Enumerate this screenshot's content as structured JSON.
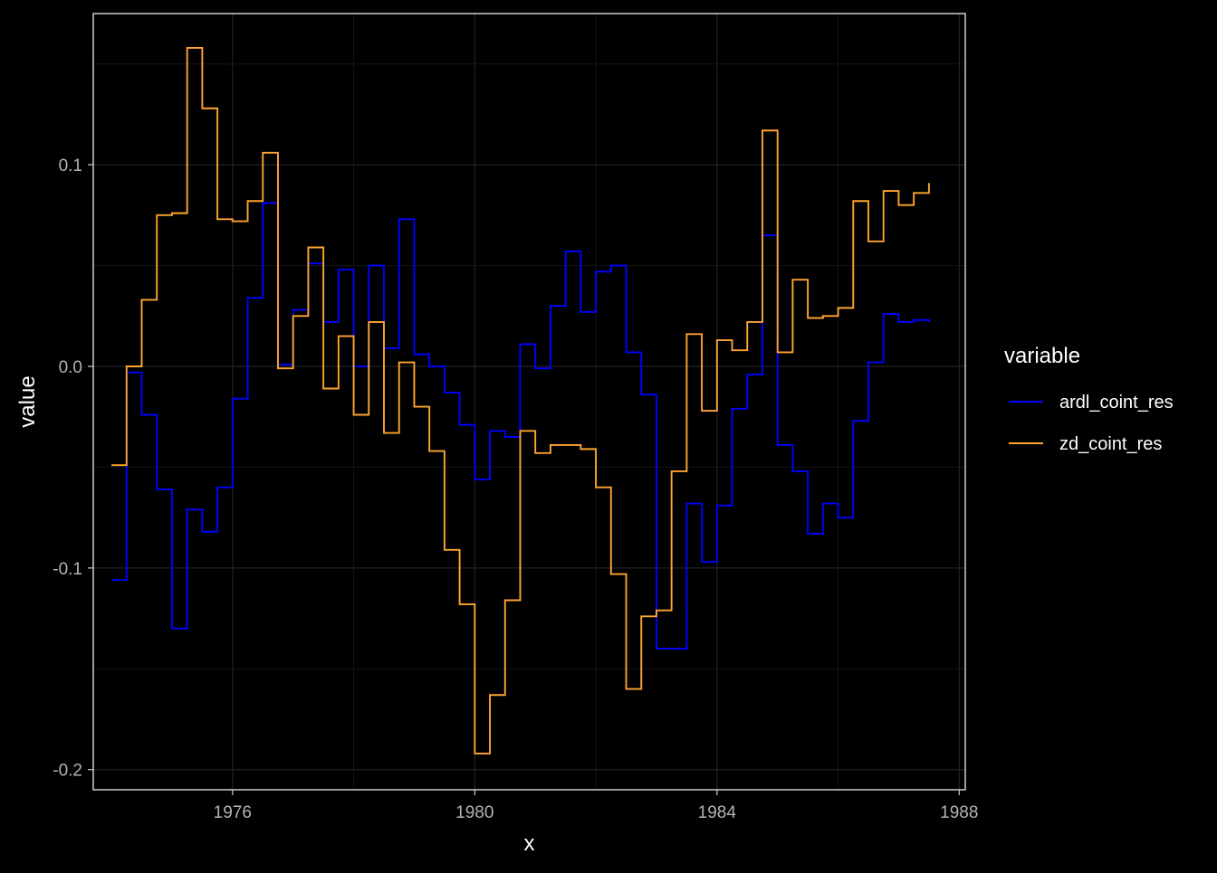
{
  "chart_data": {
    "type": "line",
    "step": true,
    "xlabel": "x",
    "ylabel": "value",
    "xlim": [
      1973.7,
      1988.1
    ],
    "ylim": [
      -0.21,
      0.175
    ],
    "x_ticks": [
      1976,
      1980,
      1984,
      1988
    ],
    "x_minor_ticks": [
      1978,
      1982,
      1986
    ],
    "y_ticks": [
      -0.2,
      -0.1,
      0.0,
      0.1
    ],
    "y_tick_labels": [
      "-0.2",
      "-0.1",
      "0.0",
      "0.1"
    ],
    "y_minor_ticks": [
      -0.15,
      -0.05,
      0.05,
      0.15
    ],
    "grid": true,
    "legend": {
      "title": "variable",
      "position": "right"
    },
    "colors": {
      "background": "#000000",
      "panel_border": "#ffffff",
      "grid_major": "#222222",
      "grid_minor": "#141414"
    },
    "x": [
      1974.0,
      1974.25,
      1974.5,
      1974.75,
      1975.0,
      1975.25,
      1975.5,
      1975.75,
      1976.0,
      1976.25,
      1976.5,
      1976.75,
      1977.0,
      1977.25,
      1977.5,
      1977.75,
      1978.0,
      1978.25,
      1978.5,
      1978.75,
      1979.0,
      1979.25,
      1979.5,
      1979.75,
      1980.0,
      1980.25,
      1980.5,
      1980.75,
      1981.0,
      1981.25,
      1981.5,
      1981.75,
      1982.0,
      1982.25,
      1982.5,
      1982.75,
      1983.0,
      1983.25,
      1983.5,
      1983.75,
      1984.0,
      1984.25,
      1984.5,
      1984.75,
      1985.0,
      1985.25,
      1985.5,
      1985.75,
      1986.0,
      1986.25,
      1986.5,
      1986.75,
      1987.0,
      1987.25,
      1987.5
    ],
    "series": [
      {
        "name": "ardl_coint_res",
        "color": "#0000ff",
        "values": [
          -0.106,
          -0.003,
          -0.024,
          -0.061,
          -0.13,
          -0.071,
          -0.082,
          -0.06,
          -0.016,
          0.034,
          0.081,
          0.001,
          0.028,
          0.051,
          0.022,
          0.048,
          0.0,
          0.05,
          0.009,
          0.073,
          0.006,
          0.0,
          -0.013,
          -0.029,
          -0.056,
          -0.032,
          -0.035,
          0.011,
          -0.001,
          0.03,
          0.057,
          0.027,
          0.047,
          0.05,
          0.007,
          -0.014,
          -0.14,
          -0.14,
          -0.068,
          -0.097,
          -0.069,
          -0.021,
          -0.004,
          0.065,
          -0.039,
          -0.052,
          -0.083,
          -0.068,
          -0.075,
          -0.027,
          0.002,
          0.026,
          0.022,
          0.023,
          0.022
        ]
      },
      {
        "name": "zd_coint_res",
        "color": "#ffa531",
        "values": [
          -0.049,
          0.0,
          0.033,
          0.075,
          0.076,
          0.158,
          0.128,
          0.073,
          0.072,
          0.082,
          0.106,
          -0.001,
          0.025,
          0.059,
          -0.011,
          0.015,
          -0.024,
          0.022,
          -0.033,
          0.002,
          -0.02,
          -0.042,
          -0.091,
          -0.118,
          -0.192,
          -0.163,
          -0.116,
          -0.032,
          -0.043,
          -0.039,
          -0.039,
          -0.041,
          -0.06,
          -0.103,
          -0.16,
          -0.124,
          -0.121,
          -0.052,
          0.016,
          -0.022,
          0.013,
          0.008,
          0.022,
          0.117,
          0.007,
          0.043,
          0.024,
          0.025,
          0.029,
          0.082,
          0.062,
          0.087,
          0.08,
          0.086,
          0.091
        ]
      }
    ]
  }
}
